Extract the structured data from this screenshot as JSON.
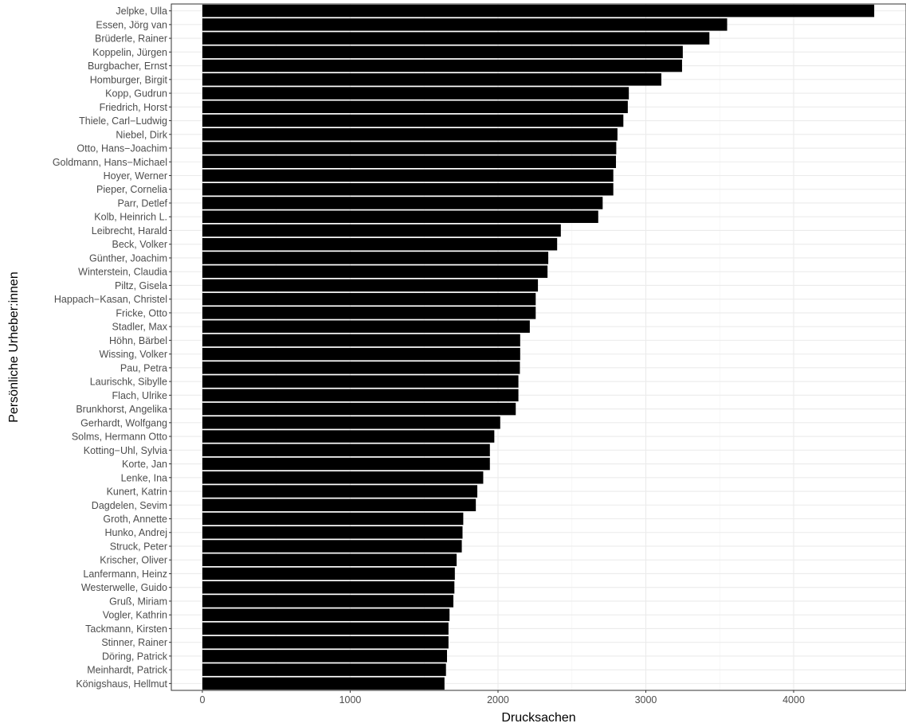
{
  "chart_data": {
    "type": "bar",
    "orientation": "horizontal",
    "title": "",
    "xlabel": "Drucksachen",
    "ylabel": "Persönliche Urheber:innen",
    "xlim": [
      -210,
      4760
    ],
    "xticks": [
      0,
      1000,
      2000,
      3000,
      4000
    ],
    "xtick_labels": [
      "0",
      "1000",
      "2000",
      "3000",
      "4000"
    ],
    "grid": true,
    "legend": "none",
    "bar_color": "#000000",
    "categories": [
      "Jelpke, Ulla",
      "Essen, Jörg van",
      "Brüderle, Rainer",
      "Koppelin, Jürgen",
      "Burgbacher, Ernst",
      "Homburger, Birgit",
      "Kopp, Gudrun",
      "Friedrich, Horst",
      "Thiele, Carl−Ludwig",
      "Niebel, Dirk",
      "Otto, Hans−Joachim",
      "Goldmann, Hans−Michael",
      "Hoyer, Werner",
      "Pieper, Cornelia",
      "Parr, Detlef",
      "Kolb, Heinrich L.",
      "Leibrecht, Harald",
      "Beck, Volker",
      "Günther, Joachim",
      "Winterstein, Claudia",
      "Piltz, Gisela",
      "Happach−Kasan, Christel",
      "Fricke, Otto",
      "Stadler, Max",
      "Höhn, Bärbel",
      "Wissing, Volker",
      "Pau, Petra",
      "Laurischk, Sibylle",
      "Flach, Ulrike",
      "Brunkhorst, Angelika",
      "Gerhardt, Wolfgang",
      "Solms, Hermann Otto",
      "Kotting−Uhl, Sylvia",
      "Korte, Jan",
      "Lenke, Ina",
      "Kunert, Katrin",
      "Dagdelen, Sevim",
      "Groth, Annette",
      "Hunko, Andrej",
      "Struck, Peter",
      "Krischer, Oliver",
      "Lanfermann, Heinz",
      "Westerwelle, Guido",
      "Gruß, Miriam",
      "Vogler, Kathrin",
      "Tackmann, Kirsten",
      "Stinner, Rainer",
      "Döring, Patrick",
      "Meinhardt, Patrick",
      "Königshaus, Hellmut"
    ],
    "values": [
      4545,
      3550,
      3430,
      3250,
      3245,
      3105,
      2885,
      2878,
      2848,
      2808,
      2800,
      2798,
      2780,
      2780,
      2708,
      2678,
      2425,
      2400,
      2340,
      2335,
      2270,
      2255,
      2255,
      2215,
      2150,
      2150,
      2148,
      2138,
      2138,
      2120,
      2015,
      1975,
      1945,
      1945,
      1900,
      1860,
      1850,
      1765,
      1760,
      1755,
      1720,
      1708,
      1705,
      1698,
      1672,
      1665,
      1665,
      1655,
      1648,
      1638
    ]
  }
}
